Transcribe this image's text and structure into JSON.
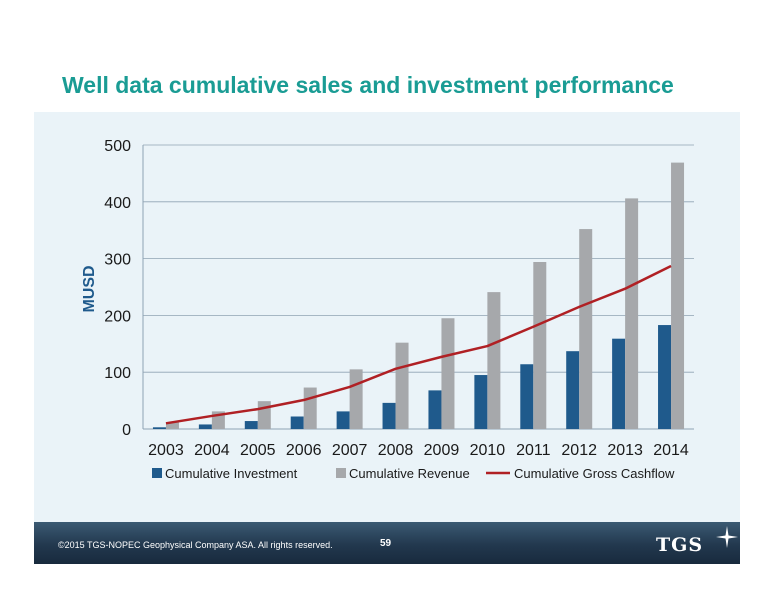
{
  "title": "Well data cumulative sales and investment performance",
  "footer": {
    "copyright": "©2015 TGS-NOPEC Geophysical Company ASA. All rights reserved.",
    "page_number": "59",
    "logo_text": "TGS",
    "logo_icon": "compass-star-icon"
  },
  "chart_data": {
    "type": "bar",
    "ylabel": "MUSD",
    "ylim": [
      0,
      500
    ],
    "yticks": [
      0,
      100,
      200,
      300,
      400,
      500
    ],
    "grid": true,
    "legend_position": "bottom",
    "categories": [
      "2003",
      "2004",
      "2005",
      "2006",
      "2007",
      "2008",
      "2009",
      "2010",
      "2011",
      "2012",
      "2013",
      "2014"
    ],
    "series": [
      {
        "name": "Cumulative Investment",
        "type": "bar",
        "color": "#1f5a8c",
        "values": [
          3,
          8,
          14,
          22,
          31,
          46,
          68,
          95,
          114,
          137,
          159,
          183
        ]
      },
      {
        "name": "Cumulative Revenue",
        "type": "bar",
        "color": "#a6a8ab",
        "values": [
          12,
          31,
          49,
          73,
          105,
          152,
          195,
          241,
          294,
          352,
          406,
          469
        ]
      },
      {
        "name": "Cumulative Gross Cashflow",
        "type": "line",
        "color": "#b02024",
        "values": [
          10,
          23,
          35,
          51,
          74,
          106,
          127,
          146,
          180,
          215,
          247,
          287
        ]
      }
    ]
  }
}
